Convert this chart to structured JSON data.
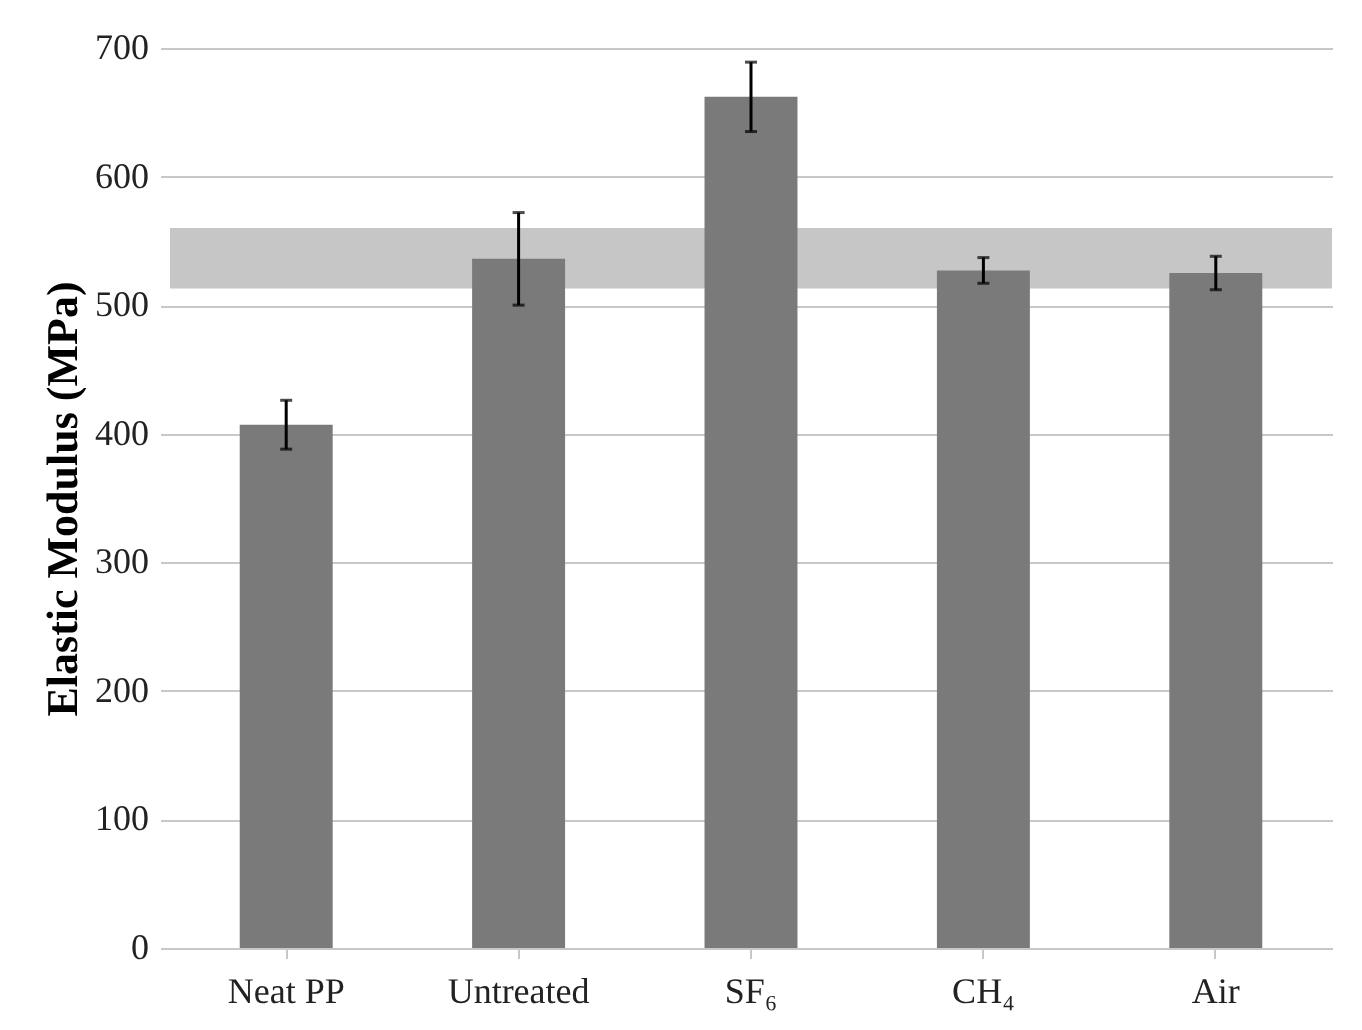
{
  "chart_data": {
    "type": "bar",
    "ylabel": "Elastic Modulus (MPa)",
    "categories": [
      "Neat PP",
      "Untreated",
      "SF₆",
      "CH₄",
      "Air"
    ],
    "values": [
      407,
      536,
      662,
      527,
      525
    ],
    "errors": [
      19,
      36,
      27,
      10,
      13
    ],
    "color": "#7a7a7a",
    "ylim": [
      0,
      700
    ],
    "yticks": [
      0,
      100,
      200,
      300,
      400,
      500,
      600,
      700
    ],
    "grid": "y",
    "bands": [
      {
        "axis": "y",
        "from": 513,
        "to": 560,
        "color": "#c6c6c6"
      }
    ]
  }
}
